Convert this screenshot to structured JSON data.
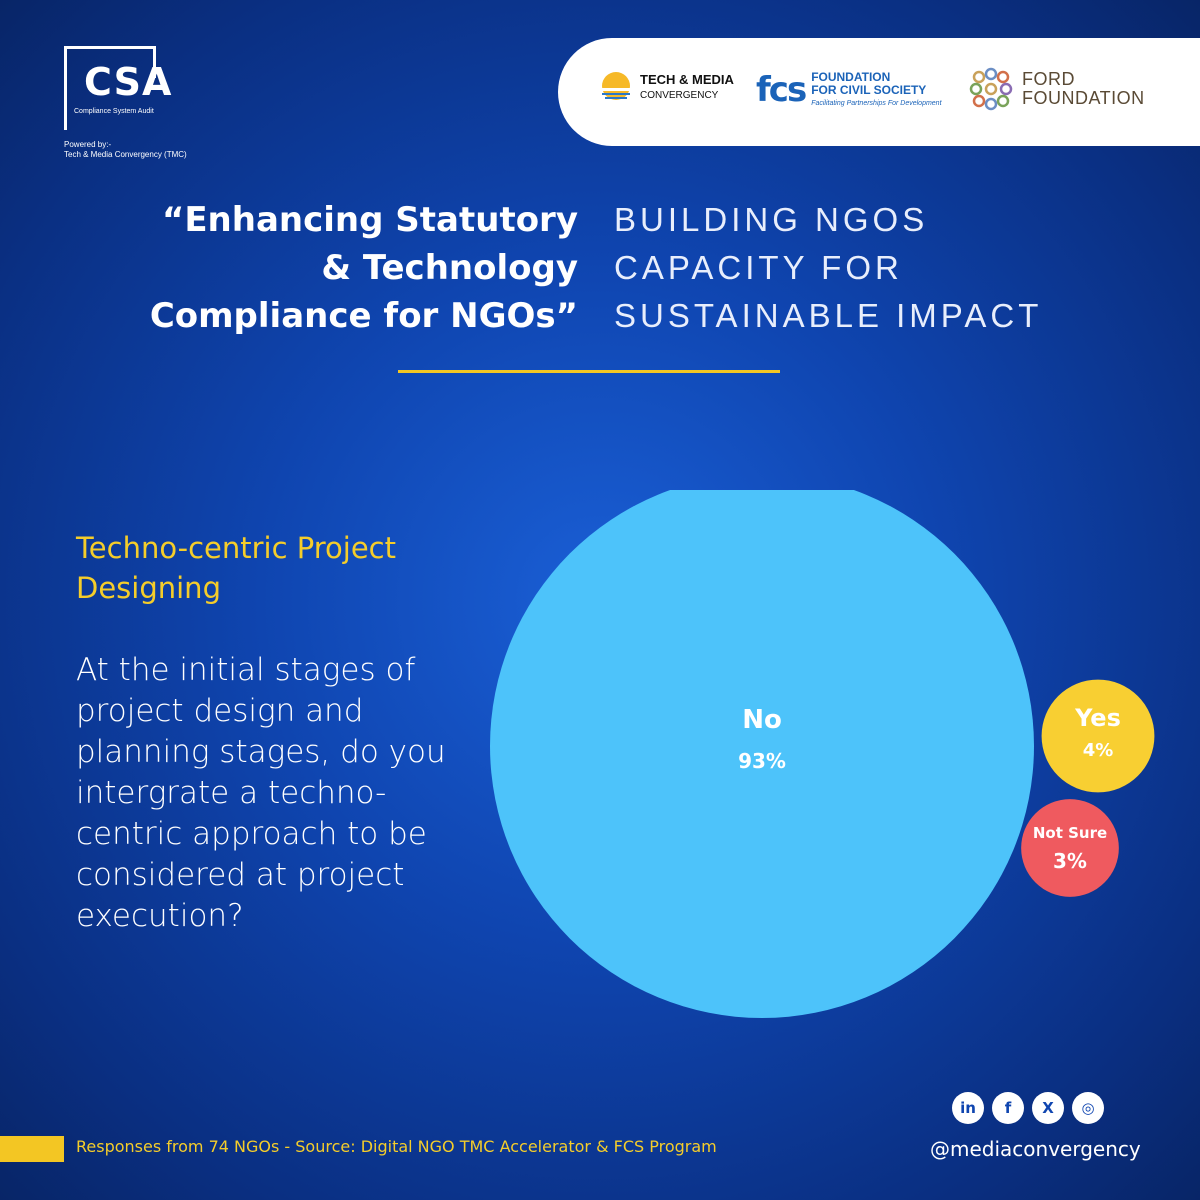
{
  "brand": {
    "logo_text": "CSA",
    "logo_subtitle": "Compliance System Audit",
    "powered_by_line1": "Powered by:-",
    "powered_by_line2": "Tech & Media Convergency (TMC)"
  },
  "partners": {
    "tmc_line1": "TECH & MEDIA",
    "tmc_line2": "CONVERGENCY",
    "fcs_mark": "fcs",
    "fcs_line1": "FOUNDATION",
    "fcs_line2": "FOR CIVIL SOCIETY",
    "fcs_tagline": "Facilitating Partnerships For Development",
    "ford_line1": "FORD",
    "ford_line2": "FOUNDATION"
  },
  "headline": {
    "line1": "“Enhancing Statutory",
    "line2": "& Technology",
    "line3": "Compliance for NGOs”",
    "sub_line1": "BUILDING NGOS",
    "sub_line2": "CAPACITY FOR",
    "sub_line3": "SUSTAINABLE IMPACT"
  },
  "section": {
    "title_line1": "Techno-centric Project",
    "title_line2": "Designing",
    "question": "At the initial stages of project design and planning stages, do you intergrate a techno-centric approach to be considered at project execution?"
  },
  "chart_data": {
    "type": "bubble",
    "series": [
      {
        "name": "No",
        "value": 93,
        "label": "93%",
        "color": "#4dc3fa"
      },
      {
        "name": "Yes",
        "value": 4,
        "label": "4%",
        "color": "#f8cf32"
      },
      {
        "name": "Not Sure",
        "value": 3,
        "label": "3%",
        "color": "#ef5a5f"
      }
    ]
  },
  "footer": {
    "source": "Responses from 74 NGOs - Source: Digital NGO TMC Accelerator & FCS Program",
    "handle": "@mediaconvergency",
    "social_icons": [
      "linkedin-icon",
      "facebook-icon",
      "x-icon",
      "instagram-icon"
    ],
    "linkedin_glyph": "in",
    "facebook_glyph": "f",
    "x_glyph": "X",
    "instagram_glyph": "◎"
  },
  "colors": {
    "accent_yellow": "#f3c623",
    "background_blue": "#0f45b0"
  }
}
